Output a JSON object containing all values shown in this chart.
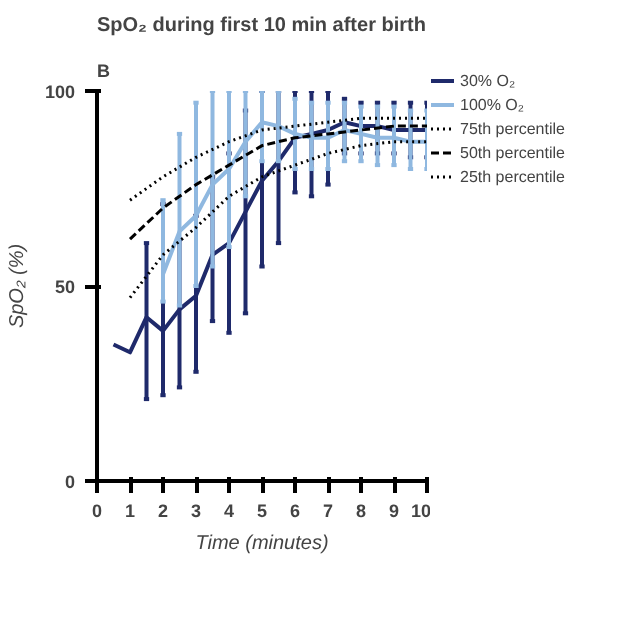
{
  "chart_data": {
    "type": "line",
    "title": "SpO₂ during first 10 min after birth",
    "xlabel": "Time (minutes)",
    "ylabel": "SpO₂ (%)",
    "annotations": [
      "B"
    ],
    "xlim": [
      0,
      10
    ],
    "xticks": [
      0,
      1,
      2,
      3,
      4,
      5,
      6,
      7,
      8,
      9,
      10
    ],
    "ylim": [
      0,
      100
    ],
    "yticks": [
      0,
      50,
      100
    ],
    "grid": false,
    "legend": "right",
    "marker": "none",
    "series": [
      {
        "name": "30% O₂",
        "color": "#1f2a6b",
        "line_style": "solid",
        "x": [
          0.5,
          1,
          1.5,
          2,
          2.5,
          3,
          3.5,
          4,
          4.5,
          5,
          5.5,
          6,
          6.5,
          7,
          7.5,
          8,
          8.5,
          9,
          9.5,
          10
        ],
        "values": [
          35,
          33,
          42,
          38.5,
          44,
          47.5,
          58,
          61,
          69,
          77,
          82,
          88,
          89,
          90,
          92,
          91,
          91,
          90,
          90,
          90
        ],
        "errors": [
          null,
          null,
          [
            21,
            61
          ],
          [
            22,
            71
          ],
          [
            24,
            62
          ],
          [
            28,
            68
          ],
          [
            41,
            78
          ],
          [
            38,
            84
          ],
          [
            43,
            95
          ],
          [
            55,
            100
          ],
          [
            61,
            100
          ],
          [
            74,
            100
          ],
          [
            73,
            100
          ],
          [
            76,
            100
          ],
          [
            84,
            98
          ],
          [
            84,
            97
          ],
          [
            84,
            97
          ],
          [
            84,
            97
          ],
          [
            83,
            97
          ],
          [
            83,
            97
          ]
        ]
      },
      {
        "name": "100% O₂",
        "color": "#8fb8e0",
        "line_style": "solid",
        "x": [
          2,
          2.5,
          3,
          3.5,
          4,
          4.5,
          5,
          5.5,
          6,
          6.5,
          7,
          7.5,
          8,
          8.5,
          9,
          9.5,
          10
        ],
        "values": [
          53,
          64,
          68,
          76,
          80,
          87,
          92,
          91,
          89,
          88,
          88,
          90,
          89,
          88,
          88,
          87,
          87
        ],
        "errors": [
          [
            46,
            72
          ],
          [
            45,
            89
          ],
          [
            50,
            97
          ],
          [
            55,
            100
          ],
          [
            60,
            100
          ],
          [
            73,
            100
          ],
          [
            82,
            100
          ],
          [
            82,
            100
          ],
          [
            80,
            98
          ],
          [
            80,
            97
          ],
          [
            80,
            97
          ],
          [
            82,
            97
          ],
          [
            82,
            96
          ],
          [
            81,
            96
          ],
          [
            81,
            96
          ],
          [
            80,
            95
          ],
          [
            80,
            95
          ]
        ]
      },
      {
        "name": "75th percentile",
        "color": "#000000",
        "line_style": "dotted",
        "x": [
          1,
          2,
          3,
          4,
          5,
          6,
          7,
          8,
          9,
          10
        ],
        "values": [
          72,
          78,
          83,
          87,
          90,
          91,
          92,
          93,
          93,
          93
        ]
      },
      {
        "name": "50th percentile",
        "color": "#000000",
        "line_style": "dashed",
        "x": [
          1,
          2,
          3,
          4,
          5,
          6,
          7,
          8,
          9,
          10
        ],
        "values": [
          62,
          70,
          76,
          81,
          86,
          88,
          89,
          90,
          91,
          91
        ]
      },
      {
        "name": "25th percentile",
        "color": "#000000",
        "line_style": "dotted",
        "x": [
          1,
          2,
          3,
          4,
          5,
          6,
          7,
          8,
          9,
          10
        ],
        "values": [
          47,
          58,
          65,
          73,
          78,
          81,
          84,
          86,
          87,
          87
        ]
      }
    ]
  }
}
